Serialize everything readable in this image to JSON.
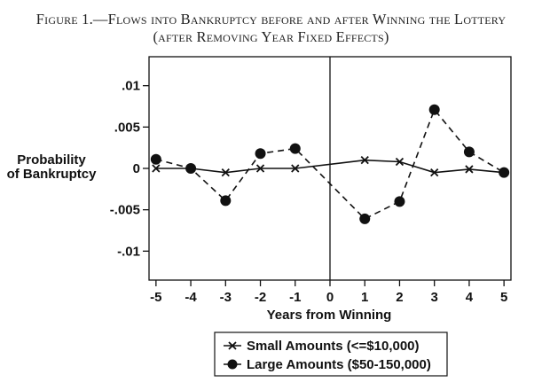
{
  "chart_data": {
    "type": "line",
    "title": "Figure 1.—Flows into Bankruptcy before and after Winning the Lottery",
    "subtitle": "(after Removing Year Fixed Effects)",
    "xlabel": "Years from Winning",
    "ylabel": [
      "Probability",
      "of Bankruptcy"
    ],
    "x": [
      -5,
      -4,
      -3,
      -2,
      -1,
      1,
      2,
      3,
      4,
      5
    ],
    "xticks": [
      -5,
      -4,
      -3,
      -2,
      -1,
      0,
      1,
      2,
      3,
      4,
      5
    ],
    "yticks": [
      0.01,
      0.005,
      0,
      -0.005,
      -0.01
    ],
    "ytick_labels": [
      ".01",
      ".005",
      "0",
      "-.005",
      "-.01"
    ],
    "xlim": [
      -5.2,
      5.2
    ],
    "ylim": [
      -0.0135,
      0.0135
    ],
    "reference_line_x": 0,
    "grid": false,
    "legend_position": "bottom-center",
    "series": [
      {
        "name": "Small Amounts (<=$10,000)",
        "marker": "x",
        "line": "solid",
        "values": [
          0.0,
          0.0,
          -0.0005,
          0.0,
          0.0,
          0.001,
          0.0008,
          -0.0005,
          -0.0001,
          -0.0005
        ]
      },
      {
        "name": "Large Amounts ($50-150,000)",
        "marker": "filled-circle",
        "line": "dashed",
        "values": [
          0.0011,
          0.0,
          -0.0039,
          0.0018,
          0.0024,
          -0.0061,
          -0.004,
          0.0071,
          0.002,
          -0.0005
        ]
      }
    ]
  }
}
